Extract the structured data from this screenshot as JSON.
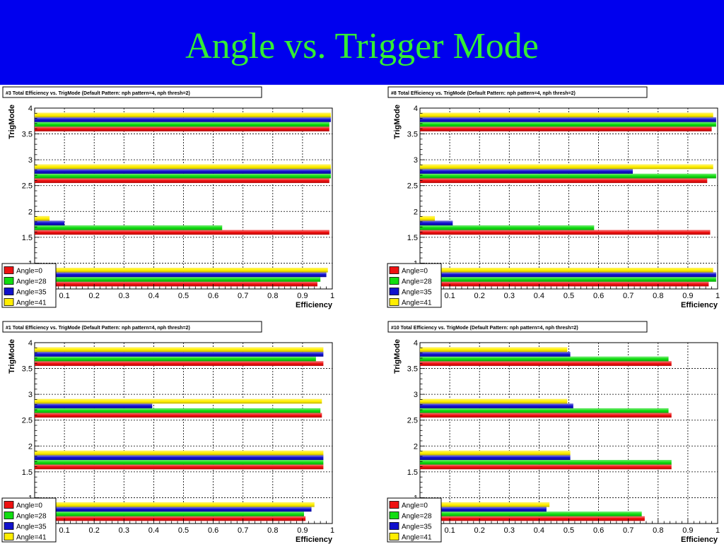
{
  "slide": {
    "title": "Angle vs. Trigger Mode"
  },
  "colors": {
    "banner": "#0000ee",
    "title": "#33ee33",
    "series": [
      "#ee1111",
      "#11dd11",
      "#1111cc",
      "#ffee00"
    ]
  },
  "chart_data": [
    {
      "type": "bar",
      "orientation": "horizontal",
      "title": "#3 Total Efficiency vs. TrigMode (Default Pattern: nph pattern=4, nph thresh=2)",
      "xlabel": "Efficiency",
      "ylabel": "TrigMode",
      "xlim": [
        0,
        1
      ],
      "ylim": [
        0.5,
        4
      ],
      "x_ticks": [
        "0.1",
        "0.2",
        "0.3",
        "0.4",
        "0.5",
        "0.6",
        "0.7",
        "0.8",
        "0.9",
        "1"
      ],
      "y_ticks": [
        "1",
        "1.5",
        "2",
        "2.5",
        "3",
        "3.5",
        "4"
      ],
      "trigmodes": [
        0.5,
        1.5,
        2.5,
        3.5
      ],
      "series": [
        {
          "name": "Angle=0",
          "values": [
            0.95,
            0.99,
            0.99,
            0.99
          ]
        },
        {
          "name": "Angle=28",
          "values": [
            0.96,
            0.63,
            0.995,
            0.99
          ]
        },
        {
          "name": "Angle=35",
          "values": [
            0.98,
            0.1,
            0.995,
            0.995
          ]
        },
        {
          "name": "Angle=41",
          "values": [
            0.985,
            0.05,
            0.995,
            0.995
          ]
        }
      ],
      "grid": true,
      "legend": "bottom-left"
    },
    {
      "type": "bar",
      "orientation": "horizontal",
      "title": "#8 Total Efficiency vs. TrigMode (Default Pattern: nph pattern=4, nph thresh=2)",
      "xlabel": "Efficiency",
      "ylabel": "TrigMode",
      "xlim": [
        0,
        1
      ],
      "ylim": [
        0.5,
        4
      ],
      "x_ticks": [
        "0.1",
        "0.2",
        "0.3",
        "0.4",
        "0.5",
        "0.6",
        "0.7",
        "0.8",
        "0.9",
        "1"
      ],
      "y_ticks": [
        "1",
        "1.5",
        "2",
        "2.5",
        "3",
        "3.5",
        "4"
      ],
      "trigmodes": [
        0.5,
        1.5,
        2.5,
        3.5
      ],
      "series": [
        {
          "name": "Angle=0",
          "values": [
            0.97,
            0.975,
            0.965,
            0.98
          ]
        },
        {
          "name": "Angle=28",
          "values": [
            0.995,
            0.585,
            0.995,
            0.995
          ]
        },
        {
          "name": "Angle=35",
          "values": [
            0.995,
            0.11,
            0.715,
            0.995
          ]
        },
        {
          "name": "Angle=41",
          "values": [
            0.985,
            0.05,
            0.985,
            0.985
          ]
        }
      ],
      "grid": true,
      "legend": "bottom-left"
    },
    {
      "type": "bar",
      "orientation": "horizontal",
      "title": "#1 Total Efficiency vs. TrigMode (Default Pattern: nph pattern=4, nph thresh=2)",
      "xlabel": "Efficiency",
      "ylabel": "TrigMode",
      "xlim": [
        0,
        1
      ],
      "ylim": [
        0.5,
        4
      ],
      "x_ticks": [
        "0.1",
        "0.2",
        "0.3",
        "0.4",
        "0.5",
        "0.6",
        "0.7",
        "0.8",
        "0.9",
        "1"
      ],
      "y_ticks": [
        "1",
        "1.5",
        "2",
        "2.5",
        "3",
        "3.5",
        "4"
      ],
      "trigmodes": [
        0.5,
        1.5,
        2.5,
        3.5
      ],
      "series": [
        {
          "name": "Angle=0",
          "values": [
            0.91,
            0.97,
            0.965,
            0.97
          ]
        },
        {
          "name": "Angle=28",
          "values": [
            0.905,
            0.97,
            0.96,
            0.945
          ]
        },
        {
          "name": "Angle=35",
          "values": [
            0.93,
            0.97,
            0.395,
            0.97
          ]
        },
        {
          "name": "Angle=41",
          "values": [
            0.94,
            0.97,
            0.965,
            0.97
          ]
        }
      ],
      "grid": true,
      "legend": "bottom-left"
    },
    {
      "type": "bar",
      "orientation": "horizontal",
      "title": "#10 Total Efficiency vs. TrigMode (Default Pattern: nph pattern=4, nph thresh=2)",
      "xlabel": "Efficiency",
      "ylabel": "TrigMode",
      "xlim": [
        0,
        1
      ],
      "ylim": [
        0.5,
        4
      ],
      "x_ticks": [
        "0.1",
        "0.2",
        "0.3",
        "0.4",
        "0.5",
        "0.6",
        "0.7",
        "0.8",
        "0.9",
        "1"
      ],
      "y_ticks": [
        "1",
        "1.5",
        "2",
        "2.5",
        "3",
        "3.5",
        "4"
      ],
      "trigmodes": [
        0.5,
        1.5,
        2.5,
        3.5
      ],
      "series": [
        {
          "name": "Angle=0",
          "values": [
            0.755,
            0.845,
            0.845,
            0.845
          ]
        },
        {
          "name": "Angle=28",
          "values": [
            0.745,
            0.845,
            0.835,
            0.835
          ]
        },
        {
          "name": "Angle=35",
          "values": [
            0.425,
            0.505,
            0.515,
            0.505
          ]
        },
        {
          "name": "Angle=41",
          "values": [
            0.435,
            0.505,
            0.495,
            0.495
          ]
        }
      ],
      "grid": true,
      "legend": "bottom-left"
    }
  ]
}
